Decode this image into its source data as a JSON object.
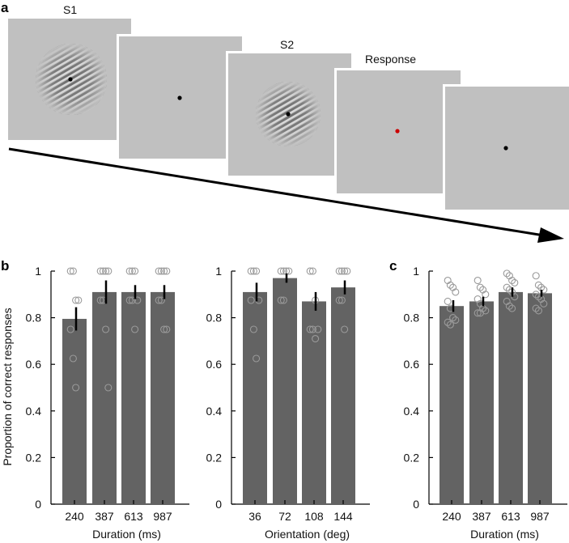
{
  "figure": {
    "panel_labels": {
      "a": "a",
      "b": "b",
      "c": "c"
    },
    "panel_a": {
      "frames": [
        {
          "id": "s1",
          "label": "S1",
          "stimulus": "grating",
          "fixation_color": "#000000"
        },
        {
          "id": "isi",
          "label": "",
          "stimulus": "blank",
          "fixation_color": "#000000"
        },
        {
          "id": "s2",
          "label": "S2",
          "stimulus": "grating",
          "fixation_color": "#000000"
        },
        {
          "id": "response",
          "label": "Response",
          "stimulus": "blank",
          "fixation_color": "#cc0000"
        },
        {
          "id": "iti",
          "label": "",
          "stimulus": "blank",
          "fixation_color": "#000000"
        }
      ],
      "arrow_meaning": "time"
    }
  },
  "colors": {
    "bar": "#636363",
    "marker_stroke": "#9a9a9a",
    "screen": "#c0c0c0",
    "axis": "#000000"
  },
  "chart_data": [
    {
      "id": "b-duration",
      "type": "bar",
      "title": "",
      "xlabel": "Duration (ms)",
      "ylabel": "Proportion of correct responses",
      "ylim": [
        0,
        1
      ],
      "yticks": [
        0,
        0.2,
        0.4,
        0.6,
        0.8,
        1
      ],
      "ytick_labels": [
        "0",
        "0.2",
        "0.4",
        "0.6",
        "0.8",
        "1"
      ],
      "categories": [
        "240",
        "387",
        "613",
        "987"
      ],
      "values": [
        0.795,
        0.91,
        0.91,
        0.91
      ],
      "error": [
        0.05,
        0.05,
        0.03,
        0.03
      ],
      "points": [
        [
          1,
          1,
          0.875,
          0.875,
          0.75,
          0.625,
          0.5
        ],
        [
          1,
          1,
          1,
          1,
          0.875,
          0.875,
          0.75,
          0.5
        ],
        [
          1,
          1,
          1,
          0.875,
          0.875,
          0.875,
          0.75
        ],
        [
          1,
          1,
          1,
          1,
          0.875,
          0.875,
          0.75,
          0.75
        ]
      ]
    },
    {
      "id": "b-orientation",
      "type": "bar",
      "title": "",
      "xlabel": "Orientation (deg)",
      "ylabel": "",
      "ylim": [
        0,
        1
      ],
      "yticks": [
        0,
        0.2,
        0.4,
        0.6,
        0.8,
        1
      ],
      "ytick_labels": [
        "0",
        "0.2",
        "0.4",
        "0.6",
        "0.8",
        "1"
      ],
      "categories": [
        "36",
        "72",
        "108",
        "144"
      ],
      "values": [
        0.91,
        0.97,
        0.87,
        0.93
      ],
      "error": [
        0.04,
        0.02,
        0.04,
        0.03
      ],
      "points": [
        [
          1,
          1,
          1,
          0.875,
          0.875,
          0.75,
          0.625
        ],
        [
          1,
          1,
          1,
          1,
          0.875,
          0.875
        ],
        [
          1,
          1,
          0.875,
          0.75,
          0.75,
          0.75,
          0.71
        ],
        [
          1,
          1,
          1,
          1,
          0.875,
          0.875,
          0.75
        ]
      ]
    },
    {
      "id": "c-duration",
      "type": "bar",
      "title": "",
      "xlabel": "Duration (ms)",
      "ylabel": "",
      "ylim": [
        0,
        1
      ],
      "yticks": [
        0,
        0.2,
        0.4,
        0.6,
        0.8,
        1
      ],
      "ytick_labels": [
        "0",
        "0.2",
        "0.4",
        "0.6",
        "0.8",
        "1"
      ],
      "categories": [
        "240",
        "387",
        "613",
        "987"
      ],
      "values": [
        0.85,
        0.87,
        0.91,
        0.905
      ],
      "error": [
        0.025,
        0.02,
        0.02,
        0.015
      ],
      "points": [
        [
          0.96,
          0.94,
          0.93,
          0.91,
          0.87,
          0.84,
          0.8,
          0.79,
          0.78,
          0.77
        ],
        [
          0.96,
          0.93,
          0.92,
          0.9,
          0.88,
          0.86,
          0.84,
          0.83,
          0.82,
          0.82
        ],
        [
          0.99,
          0.98,
          0.96,
          0.95,
          0.93,
          0.92,
          0.91,
          0.89,
          0.87,
          0.85,
          0.84
        ],
        [
          0.98,
          0.94,
          0.93,
          0.92,
          0.9,
          0.89,
          0.88,
          0.86,
          0.84,
          0.83
        ]
      ]
    }
  ]
}
